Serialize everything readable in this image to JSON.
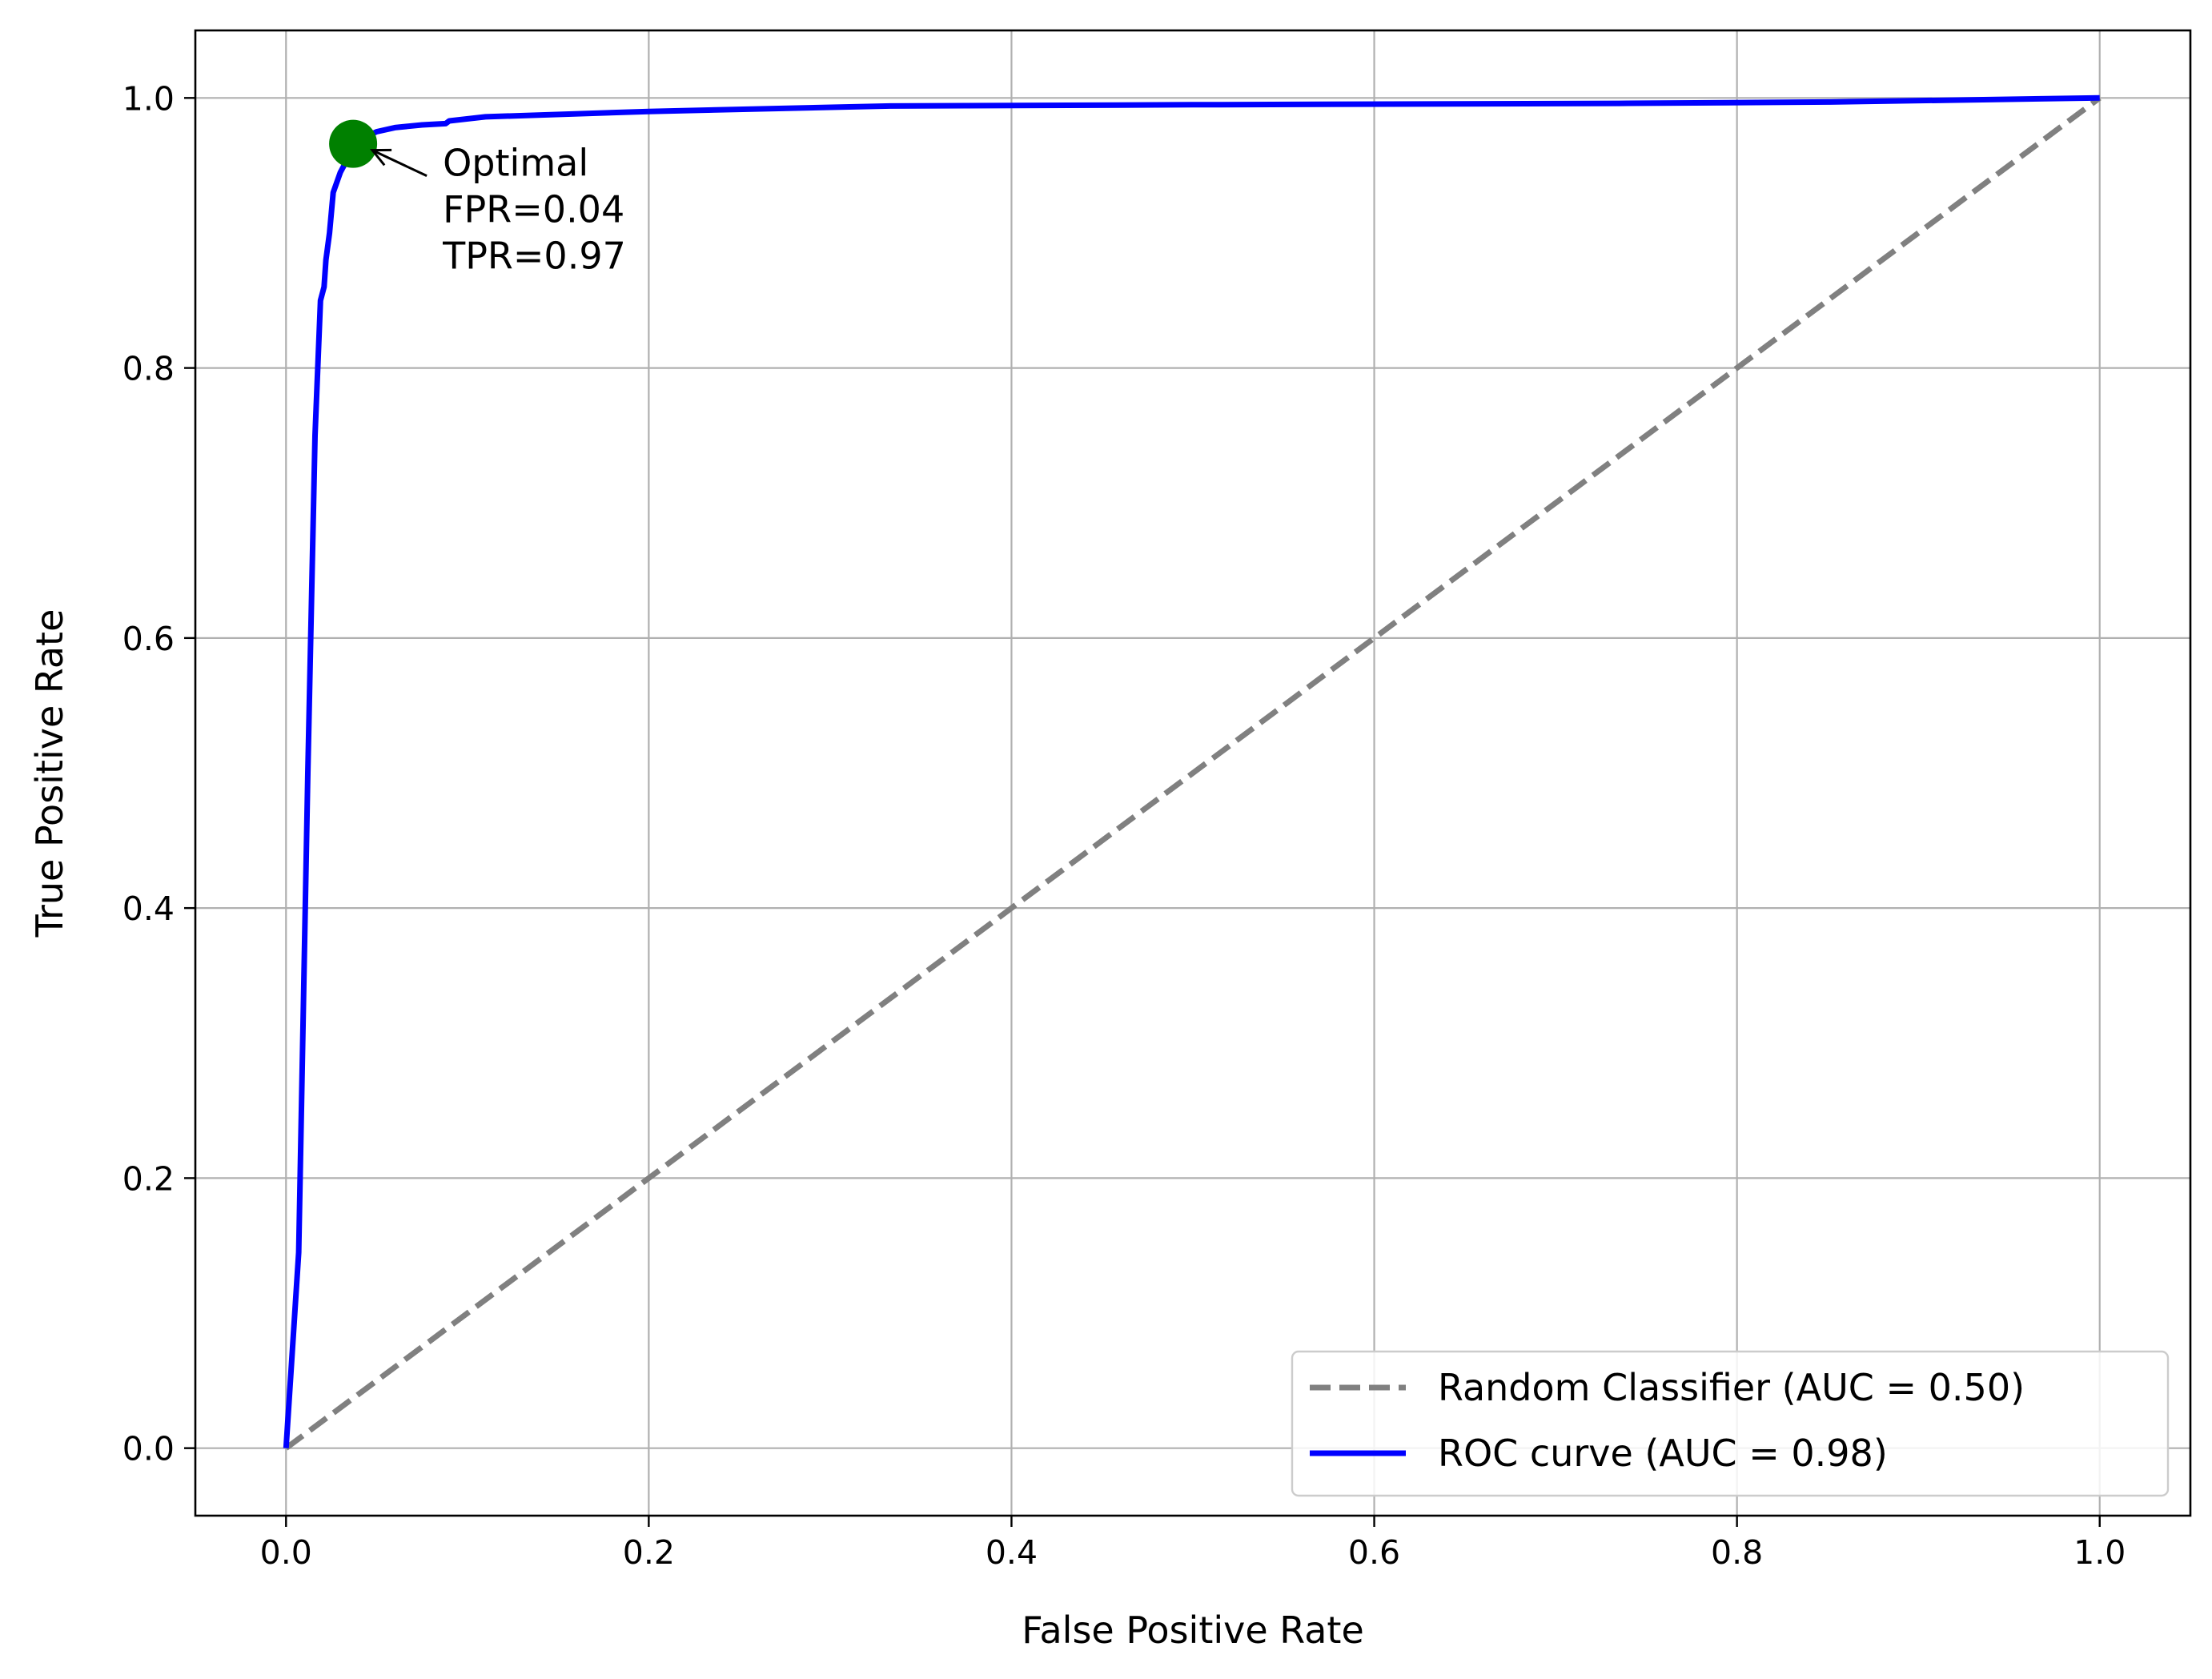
{
  "chart_data": {
    "type": "line",
    "title": "",
    "xlabel": "False Positive Rate",
    "ylabel": "True Positive Rate",
    "xlim": [
      -0.05,
      1.05
    ],
    "ylim": [
      -0.05,
      1.05
    ],
    "xticks": [
      0.0,
      0.2,
      0.4,
      0.6,
      0.8,
      1.0
    ],
    "yticks": [
      0.0,
      0.2,
      0.4,
      0.6,
      0.8,
      1.0
    ],
    "xtick_labels": [
      "0.0",
      "0.2",
      "0.4",
      "0.6",
      "0.8",
      "1.0"
    ],
    "ytick_labels": [
      "0.0",
      "0.2",
      "0.4",
      "0.6",
      "0.8",
      "1.0"
    ],
    "grid": true,
    "legend_position": "lower-right",
    "series": [
      {
        "name": "Random Classifier (AUC = 0.50)",
        "color": "#808080",
        "style": "dashed",
        "x": [
          0.0,
          1.0
        ],
        "y": [
          0.0,
          1.0
        ]
      },
      {
        "name": "ROC curve (AUC = 0.98)",
        "color": "#0000ff",
        "style": "solid",
        "x": [
          0.0,
          0.007,
          0.012,
          0.016,
          0.019,
          0.021,
          0.022,
          0.024,
          0.026,
          0.03,
          0.036,
          0.042,
          0.05,
          0.06,
          0.075,
          0.088,
          0.09,
          0.11,
          0.2,
          0.333,
          0.5,
          0.735,
          0.85,
          1.0
        ],
        "y": [
          0.0,
          0.145,
          0.5,
          0.75,
          0.85,
          0.86,
          0.88,
          0.9,
          0.93,
          0.945,
          0.96,
          0.97,
          0.975,
          0.978,
          0.98,
          0.981,
          0.983,
          0.986,
          0.99,
          0.994,
          0.995,
          0.996,
          0.997,
          1.0
        ]
      }
    ],
    "points": [
      {
        "x": 0.037,
        "y": 0.966,
        "color": "#008000"
      }
    ],
    "annotations": [
      {
        "lines": [
          "Optimal",
          "FPR=0.04",
          "TPR=0.97"
        ],
        "point_x": 0.037,
        "point_y": 0.966
      }
    ]
  }
}
